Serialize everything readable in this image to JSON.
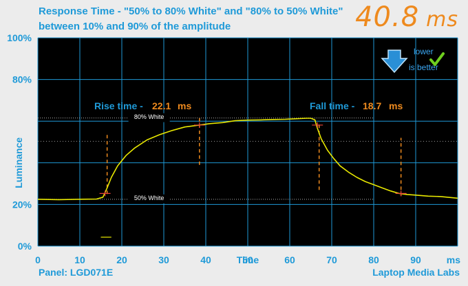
{
  "title_line1": "Response Time - \"50% to 80% White\" and \"80% to 50% White\"",
  "title_line2": "between 10% and 90% of the amplitude",
  "total_value": "40.8",
  "total_unit": "ms",
  "panel": "Panel: LGD071E",
  "brand": "Laptop Media Labs",
  "badge_lower": "lower",
  "badge_better": "is better",
  "rise_label": "Rise time -",
  "rise_value": "22.1",
  "rise_unit": "ms",
  "fall_label": "Fall time -",
  "fall_value": "18.7",
  "fall_unit": "ms",
  "ref_high_label": "80% White",
  "ref_low_label": "50% White",
  "colors": {
    "accent": "#1f9ad8",
    "orange": "#ee8a1e",
    "trace": "#e8e800",
    "background": "#000000",
    "grid": "#1f9ad8"
  },
  "chart_data": {
    "type": "line",
    "xlabel": "Time",
    "ylabel": "Luminance",
    "x_unit_label": "ms",
    "xlim": [
      0,
      100
    ],
    "ylim": [
      0,
      100
    ],
    "x_ticks": [
      0,
      10,
      20,
      30,
      40,
      50,
      60,
      70,
      80,
      90
    ],
    "y_ticks": [
      {
        "value": 0,
        "label": "0%"
      },
      {
        "value": 20,
        "label": "20%"
      },
      {
        "value": 80,
        "label": "80%"
      },
      {
        "value": 100,
        "label": "100%"
      }
    ],
    "reference_lines": [
      {
        "label": "80% White",
        "y": 61.5
      },
      {
        "label": "50% White",
        "y": 22.5
      }
    ],
    "series": [
      {
        "x": [
          0,
          5,
          10,
          14,
          15.5,
          16.5,
          17.5,
          19,
          21,
          23,
          26,
          29,
          32,
          35,
          38,
          41,
          44,
          47,
          50,
          53,
          56,
          59,
          62,
          64,
          65,
          66,
          66.5,
          67.5,
          69,
          70.5,
          72,
          74,
          76,
          78,
          80,
          82,
          84,
          86,
          88,
          90,
          93,
          96,
          100
        ],
        "y": [
          22.5,
          22.3,
          22.5,
          22.6,
          23.5,
          28,
          33,
          38.5,
          43.5,
          47,
          51,
          53.5,
          55.5,
          57.2,
          58,
          58.8,
          59.3,
          60.2,
          60.5,
          60.6,
          60.8,
          60.9,
          61.2,
          61.4,
          61.4,
          60.6,
          57,
          51.5,
          46,
          42,
          38.5,
          35.5,
          33,
          31,
          29.5,
          28,
          26.5,
          25.3,
          24.8,
          24.5,
          24,
          23.8,
          23
        ]
      },
      {
        "x": [
          15,
          17.5
        ],
        "y": [
          4.3,
          4.3
        ]
      }
    ],
    "markers": [
      {
        "x": 16,
        "y": 25.3,
        "type": "cross"
      },
      {
        "x": 38.5,
        "y": 58.1,
        "type": "cross"
      },
      {
        "x": 66.6,
        "y": 58.1,
        "type": "cross"
      },
      {
        "x": 86.5,
        "y": 25.3,
        "type": "cross"
      }
    ],
    "time_markers": [
      {
        "x": 16.5,
        "y_from": 25,
        "y_to": 54
      },
      {
        "x": 38.5,
        "y_from": 39,
        "y_to": 61.5
      },
      {
        "x": 67,
        "y_from": 27,
        "y_to": 59
      },
      {
        "x": 86.5,
        "y_from": 24,
        "y_to": 52
      }
    ]
  }
}
